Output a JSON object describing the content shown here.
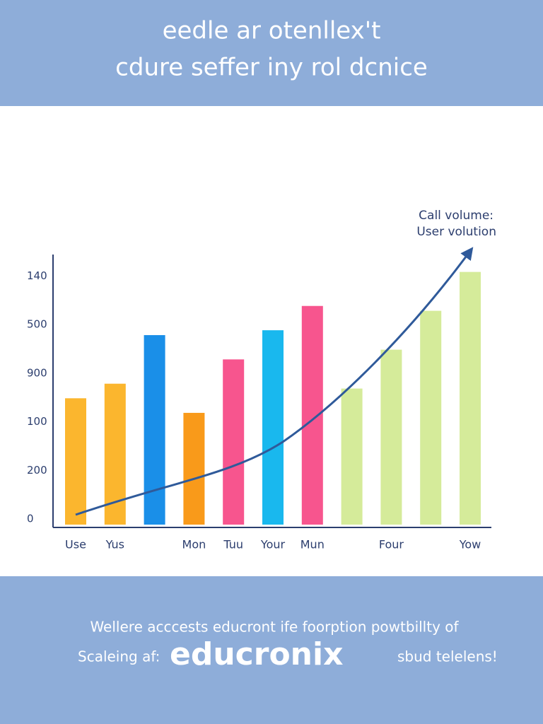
{
  "header": {
    "lines": [
      "eedle ar otenllex't",
      "cdure seffer iny rol dcnice"
    ]
  },
  "footer": {
    "line1": "Wellere acccests educront ife foorption powtbillty of",
    "line2_left": "Scaleing af:",
    "logo": "educronix",
    "line2_right": "sbud telelens!"
  },
  "chart_data": {
    "type": "bar",
    "annotation": [
      "Call volume:",
      "User volution"
    ],
    "categories": [
      "Use",
      "Yus",
      null,
      "Mon",
      "Tuu",
      "Your",
      "Mun",
      null,
      "Four",
      null,
      "Yow"
    ],
    "values": [
      2.6,
      2.9,
      3.9,
      2.3,
      3.4,
      4.0,
      4.5,
      2.8,
      3.6,
      4.4,
      5.2
    ],
    "colors": [
      "#fbb62e",
      "#fbb62e",
      "#1a8fe8",
      "#f99a1a",
      "#f7558e",
      "#19b8ee",
      "#f7558e",
      "#d5eb9a",
      "#d5eb9a",
      "#d5eb9a",
      "#d5eb9a"
    ],
    "ylim": [
      0,
      5.5
    ],
    "yticks": [
      {
        "value": 0,
        "label": "0"
      },
      {
        "value": 1,
        "label": "200"
      },
      {
        "value": 2,
        "label": "100"
      },
      {
        "value": 3,
        "label": "900"
      },
      {
        "value": 4,
        "label": "500"
      },
      {
        "value": 5,
        "label": "140"
      }
    ]
  }
}
